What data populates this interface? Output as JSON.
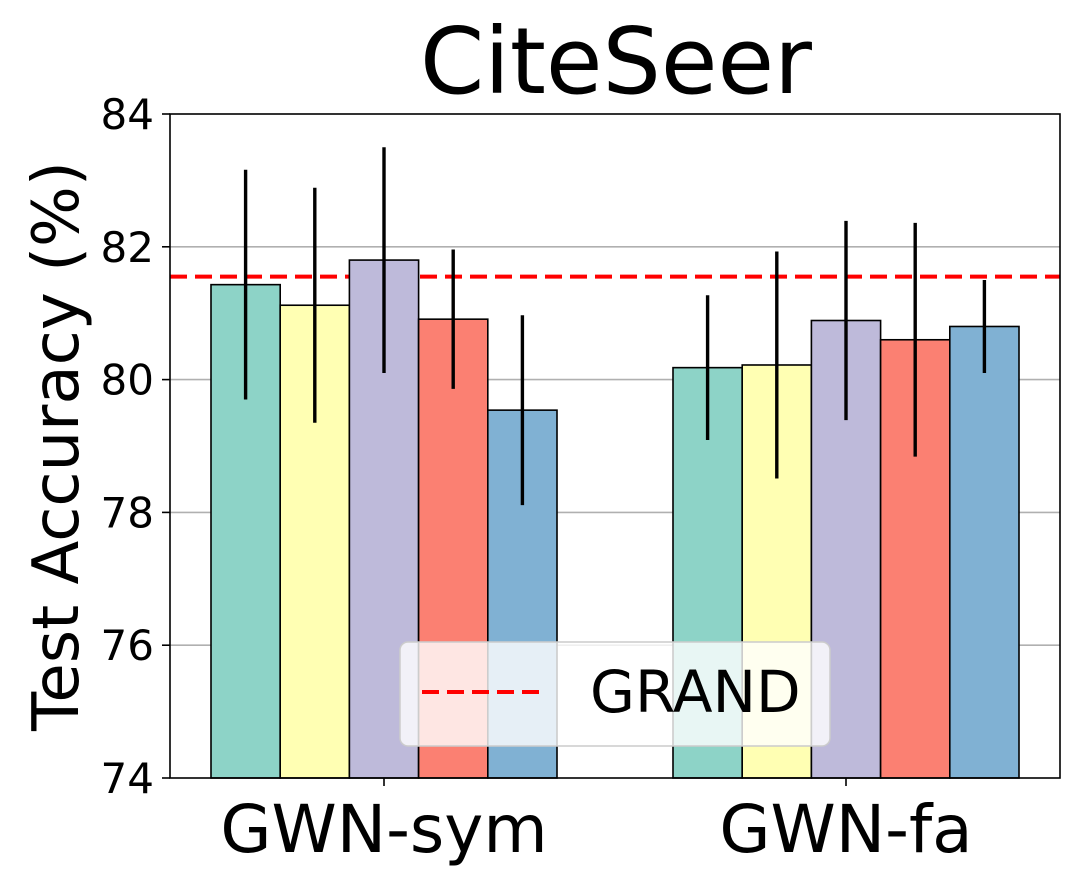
{
  "chart_data": {
    "type": "bar",
    "title": "CiteSeer",
    "xlabel": "",
    "ylabel": "Test Accuracy (%)",
    "ylim": [
      74,
      84
    ],
    "yticks": [
      74,
      76,
      78,
      80,
      82,
      84
    ],
    "ytick_labels": [
      "74",
      "76",
      "78",
      "80",
      "82",
      "84"
    ],
    "grid": "horizontal",
    "categories": [
      "GWN-sym",
      "GWN-fa"
    ],
    "series": [
      {
        "name": "series-1",
        "color": "#8dd3c7",
        "values": [
          81.43,
          80.18
        ],
        "errors": [
          1.73,
          1.09
        ]
      },
      {
        "name": "series-2",
        "color": "#ffffb3",
        "values": [
          81.12,
          80.22
        ],
        "errors": [
          1.77,
          1.71
        ]
      },
      {
        "name": "series-3",
        "color": "#bebada",
        "values": [
          81.8,
          80.89
        ],
        "errors": [
          1.7,
          1.5
        ]
      },
      {
        "name": "series-4",
        "color": "#fb8072",
        "values": [
          80.91,
          80.6
        ],
        "errors": [
          1.05,
          1.76
        ]
      },
      {
        "name": "series-5",
        "color": "#80b1d3",
        "values": [
          79.54,
          80.8
        ],
        "errors": [
          1.43,
          0.7
        ]
      }
    ],
    "reference_line": {
      "label": "GRAND",
      "value": 81.55,
      "color": "#ff0000",
      "style": "dashed"
    },
    "legend": {
      "position": "lower-center",
      "entries": [
        "GRAND"
      ]
    }
  }
}
